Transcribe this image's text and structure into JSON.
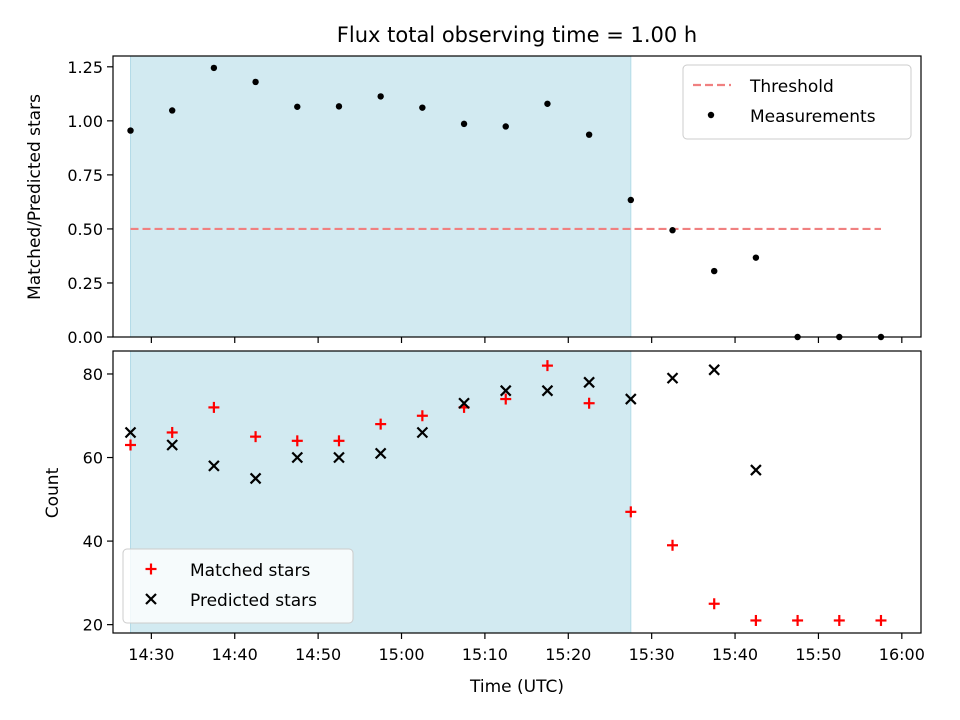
{
  "chart_data": {
    "type": "scatter",
    "title": "Flux total observing time = 1.00 h",
    "xlabel": "Time (UTC)",
    "x_tick_labels": [
      "14:30",
      "14:40",
      "14:50",
      "15:00",
      "15:10",
      "15:20",
      "15:30",
      "15:40",
      "15:50",
      "16:00"
    ],
    "x_tick_minutes": [
      0,
      10,
      20,
      30,
      40,
      50,
      60,
      70,
      80,
      90
    ],
    "xlim_minutes": [
      -4.6,
      92.3
    ],
    "shaded_region_minutes": [
      -2.5,
      57.5
    ],
    "colors": {
      "shade": "#add8e6",
      "threshold": "#f08080",
      "matched": "#ff0000",
      "predicted": "#000000",
      "measurement": "#000000"
    },
    "panels": [
      {
        "id": "ratio",
        "ylabel": "Matched/Predicted stars",
        "ylim": [
          0,
          1.3
        ],
        "y_tick_values": [
          0,
          0.25,
          0.5,
          0.75,
          1.0,
          1.25
        ],
        "y_tick_labels": [
          "0.00",
          "0.25",
          "0.50",
          "0.75",
          "1.00",
          "1.25"
        ],
        "legend_position": "upper right",
        "legend": [
          {
            "key": "threshold",
            "label": "Threshold",
            "style": "dashed-line"
          },
          {
            "key": "measurements",
            "label": "Measurements",
            "style": "dot"
          }
        ],
        "threshold": {
          "value": 0.5,
          "x_range_minutes": [
            -2.5,
            87.5
          ]
        },
        "series": [
          {
            "key": "measurements",
            "name": "Measurements",
            "marker": "dot",
            "x_minutes": [
              -2.5,
              2.5,
              7.5,
              12.5,
              17.5,
              22.5,
              27.5,
              32.5,
              37.5,
              42.5,
              47.5,
              52.5,
              57.5,
              62.5,
              67.5,
              72.5,
              77.5,
              82.5,
              87.5
            ],
            "y": [
              0.955,
              1.048,
              1.245,
              1.18,
              1.065,
              1.067,
              1.113,
              1.061,
              0.986,
              0.974,
              1.079,
              0.936,
              0.634,
              0.494,
              0.305,
              0.367,
              0.0,
              0.0,
              0.0
            ]
          }
        ]
      },
      {
        "id": "count",
        "ylabel": "Count",
        "ylim": [
          18,
          85.5
        ],
        "y_tick_values": [
          20,
          40,
          60,
          80
        ],
        "y_tick_labels": [
          "20",
          "40",
          "60",
          "80"
        ],
        "legend_position": "lower left",
        "legend": [
          {
            "key": "matched",
            "label": "Matched stars",
            "style": "plus"
          },
          {
            "key": "predicted",
            "label": "Predicted stars",
            "style": "x"
          }
        ],
        "series": [
          {
            "key": "matched",
            "name": "Matched stars",
            "marker": "plus",
            "x_minutes": [
              -2.5,
              2.5,
              7.5,
              12.5,
              17.5,
              22.5,
              27.5,
              32.5,
              37.5,
              42.5,
              47.5,
              52.5,
              57.5,
              62.5,
              67.5,
              72.5,
              77.5,
              82.5,
              87.5
            ],
            "y": [
              63,
              66,
              72,
              65,
              64,
              64,
              68,
              70,
              72,
              74,
              82,
              73,
              47,
              39,
              25,
              21,
              21,
              21,
              21
            ]
          },
          {
            "key": "predicted",
            "name": "Predicted stars",
            "marker": "x",
            "x_minutes": [
              -2.5,
              2.5,
              7.5,
              12.5,
              17.5,
              22.5,
              27.5,
              32.5,
              37.5,
              42.5,
              47.5,
              52.5,
              57.5,
              62.5,
              67.5,
              72.5
            ],
            "y": [
              66,
              63,
              58,
              55,
              60,
              60,
              61,
              66,
              73,
              76,
              76,
              78,
              74,
              79,
              81,
              57
            ]
          }
        ]
      }
    ]
  }
}
